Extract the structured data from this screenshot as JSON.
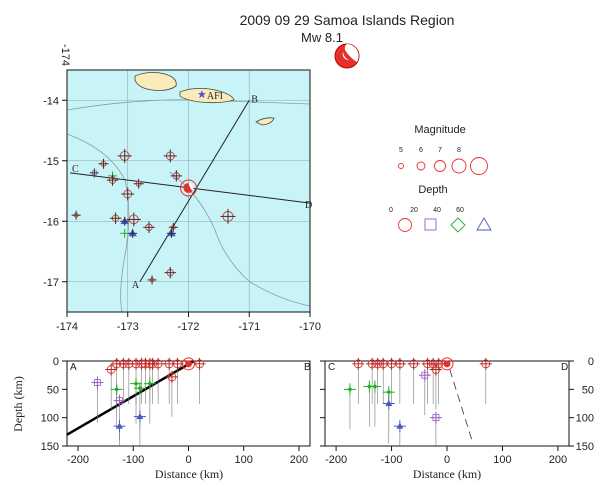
{
  "header": {
    "title": "2009 09 29 Samoa Islands Region",
    "magnitude_label": "Mw  8.1"
  },
  "colors": {
    "ocean": "#c8f4f8",
    "land": "#fbebbb",
    "red": "#e8302a",
    "purple": "#9b58c0",
    "green": "#20b020",
    "blue": "#4a56c8",
    "dark": "#333333"
  },
  "map": {
    "xlim": [
      -174,
      -170
    ],
    "ylim": [
      -17.5,
      -13.5
    ],
    "x_ticks": [
      "-174",
      "-173",
      "-172",
      "-171",
      "-170"
    ],
    "y_ticks": [
      "-14",
      "-15",
      "-16",
      "-17"
    ],
    "corner_label": "-174",
    "station_label": "AFI",
    "section_labels": [
      "A",
      "B",
      "C",
      "D"
    ]
  },
  "legend": {
    "magnitude_title": "Magnitude",
    "magnitude_values": [
      "5",
      "6",
      "7",
      "8"
    ],
    "depth_title": "Depth",
    "depth_values": [
      "0",
      "20",
      "40",
      "60"
    ]
  },
  "chart_data": [
    {
      "type": "scatter",
      "name": "epicenter-map",
      "xlabel": "",
      "ylabel": "",
      "xlim": [
        -174,
        -170
      ],
      "ylim": [
        -17.5,
        -13.5
      ],
      "grid": true,
      "mainshock": {
        "lon": -172.0,
        "lat": -15.45,
        "mag": 8.1
      },
      "station": {
        "name": "AFI",
        "lon": -171.78,
        "lat": -13.9
      },
      "section_AB": {
        "start": [
          -172.8,
          -17.0
        ],
        "end": [
          -171.0,
          -14.0
        ]
      },
      "section_CD": {
        "start": [
          -173.95,
          -15.2
        ],
        "end": [
          -170.0,
          -15.7
        ]
      },
      "events": [
        {
          "lon": -173.05,
          "lat": -14.92,
          "mag": 6.0,
          "depth": 10
        },
        {
          "lon": -172.3,
          "lat": -14.92,
          "mag": 5.8,
          "depth": 10
        },
        {
          "lon": -173.4,
          "lat": -15.05,
          "mag": 5.2,
          "depth": 10
        },
        {
          "lon": -173.55,
          "lat": -15.2,
          "mag": 5.0,
          "depth": 35
        },
        {
          "lon": -173.25,
          "lat": -15.25,
          "mag": 5.0,
          "depth": 40
        },
        {
          "lon": -173.25,
          "lat": -15.32,
          "mag": 5.5,
          "depth": 10
        },
        {
          "lon": -172.82,
          "lat": -15.38,
          "mag": 5.2,
          "depth": 10
        },
        {
          "lon": -172.2,
          "lat": -15.25,
          "mag": 5.5,
          "depth": 10
        },
        {
          "lon": -173.0,
          "lat": -15.55,
          "mag": 5.8,
          "depth": 10
        },
        {
          "lon": -173.2,
          "lat": -15.95,
          "mag": 5.5,
          "depth": 10
        },
        {
          "lon": -172.9,
          "lat": -15.97,
          "mag": 6.0,
          "depth": 10
        },
        {
          "lon": -173.05,
          "lat": -16.0,
          "mag": 5.0,
          "depth": 70
        },
        {
          "lon": -172.65,
          "lat": -16.1,
          "mag": 5.5,
          "depth": 10
        },
        {
          "lon": -172.25,
          "lat": -16.1,
          "mag": 5.0,
          "depth": 10
        },
        {
          "lon": -171.35,
          "lat": -15.92,
          "mag": 6.2,
          "depth": 10
        },
        {
          "lon": -173.05,
          "lat": -16.2,
          "mag": 5.0,
          "depth": 55
        },
        {
          "lon": -172.92,
          "lat": -16.2,
          "mag": 5.0,
          "depth": 100
        },
        {
          "lon": -172.28,
          "lat": -16.2,
          "mag": 5.0,
          "depth": 100
        },
        {
          "lon": -172.3,
          "lat": -16.85,
          "mag": 5.5,
          "depth": 10
        },
        {
          "lon": -172.6,
          "lat": -16.97,
          "mag": 5.0,
          "depth": 10
        },
        {
          "lon": -173.85,
          "lat": -15.9,
          "mag": 5.0,
          "depth": 10
        }
      ]
    },
    {
      "type": "scatter",
      "name": "cross-section-AB",
      "xlabel": "Distance (km)",
      "ylabel": "Depth (km)",
      "xlim": [
        -220,
        220
      ],
      "ylim": [
        150,
        0
      ],
      "x_ticks": [
        -200,
        -100,
        0,
        100,
        200
      ],
      "y_ticks": [
        0,
        50,
        100,
        150
      ],
      "slab_line": {
        "x": [
          -220,
          10
        ],
        "y": [
          130,
          0
        ]
      },
      "mainshock": {
        "x": 0,
        "depth": 5
      },
      "events": [
        {
          "x": -165,
          "depth": 38,
          "kind": "purple"
        },
        {
          "x": -140,
          "depth": 15,
          "kind": "red"
        },
        {
          "x": -130,
          "depth": 5,
          "kind": "red"
        },
        {
          "x": -118,
          "depth": 5,
          "kind": "red"
        },
        {
          "x": -108,
          "depth": 5,
          "kind": "red"
        },
        {
          "x": -95,
          "depth": 5,
          "kind": "red"
        },
        {
          "x": -85,
          "depth": 5,
          "kind": "red"
        },
        {
          "x": -78,
          "depth": 5,
          "kind": "red"
        },
        {
          "x": -70,
          "depth": 5,
          "kind": "red"
        },
        {
          "x": -65,
          "depth": 5,
          "kind": "red"
        },
        {
          "x": -55,
          "depth": 5,
          "kind": "red"
        },
        {
          "x": -35,
          "depth": 5,
          "kind": "red"
        },
        {
          "x": -20,
          "depth": 5,
          "kind": "red"
        },
        {
          "x": 20,
          "depth": 5,
          "kind": "red"
        },
        {
          "x": -130,
          "depth": 50,
          "kind": "green"
        },
        {
          "x": -95,
          "depth": 40,
          "kind": "green"
        },
        {
          "x": -88,
          "depth": 48,
          "kind": "green"
        },
        {
          "x": -70,
          "depth": 40,
          "kind": "green"
        },
        {
          "x": -125,
          "depth": 70,
          "kind": "purple"
        },
        {
          "x": -88,
          "depth": 98,
          "kind": "blue"
        },
        {
          "x": -125,
          "depth": 115,
          "kind": "blue"
        },
        {
          "x": -30,
          "depth": 28,
          "kind": "red"
        }
      ]
    },
    {
      "type": "scatter",
      "name": "cross-section-CD",
      "xlabel": "Distance (km)",
      "ylabel": "",
      "xlim": [
        -220,
        220
      ],
      "ylim": [
        150,
        0
      ],
      "x_ticks": [
        -200,
        -100,
        0,
        100,
        200
      ],
      "y_ticks": [
        0,
        50,
        100,
        150
      ],
      "dashed_line": {
        "x": [
          5,
          45
        ],
        "y": [
          15,
          140
        ]
      },
      "mainshock": {
        "x": 0,
        "depth": 5
      },
      "events": [
        {
          "x": -160,
          "depth": 5,
          "kind": "red"
        },
        {
          "x": -135,
          "depth": 5,
          "kind": "red"
        },
        {
          "x": -125,
          "depth": 5,
          "kind": "red"
        },
        {
          "x": -115,
          "depth": 5,
          "kind": "red"
        },
        {
          "x": -100,
          "depth": 5,
          "kind": "red"
        },
        {
          "x": -85,
          "depth": 5,
          "kind": "red"
        },
        {
          "x": -60,
          "depth": 5,
          "kind": "red"
        },
        {
          "x": -35,
          "depth": 5,
          "kind": "red"
        },
        {
          "x": -25,
          "depth": 5,
          "kind": "red"
        },
        {
          "x": -15,
          "depth": 5,
          "kind": "red"
        },
        {
          "x": 70,
          "depth": 5,
          "kind": "red"
        },
        {
          "x": -20,
          "depth": 15,
          "kind": "red"
        },
        {
          "x": -40,
          "depth": 25,
          "kind": "purple"
        },
        {
          "x": -175,
          "depth": 50,
          "kind": "green"
        },
        {
          "x": -140,
          "depth": 45,
          "kind": "green"
        },
        {
          "x": -130,
          "depth": 45,
          "kind": "green"
        },
        {
          "x": -105,
          "depth": 55,
          "kind": "green"
        },
        {
          "x": -105,
          "depth": 75,
          "kind": "blue"
        },
        {
          "x": -85,
          "depth": 115,
          "kind": "blue"
        },
        {
          "x": -20,
          "depth": 100,
          "kind": "purple"
        }
      ]
    }
  ]
}
